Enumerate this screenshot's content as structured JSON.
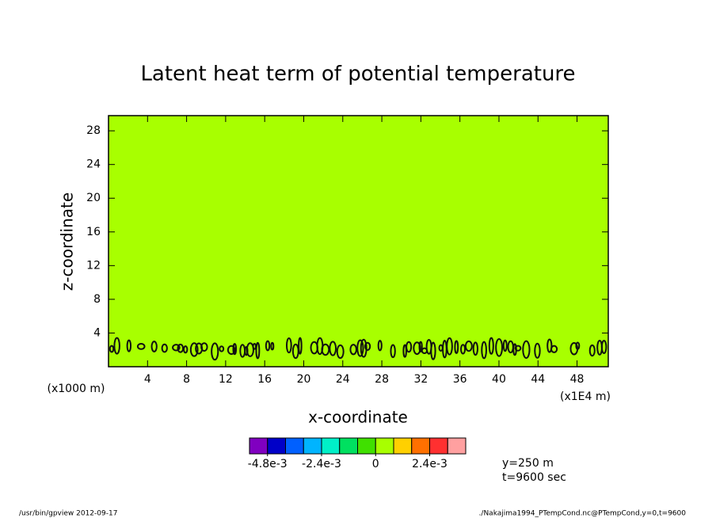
{
  "chart_data": {
    "type": "contour",
    "title": "Latent heat term of potential temperature",
    "xlabel": "x-coordinate",
    "ylabel": "z-coordinate",
    "x_unit": "(x1E4 m)",
    "y_unit": "(x1000 m)",
    "xlim": [
      0,
      51.2
    ],
    "xticks": [
      4,
      8,
      12,
      16,
      20,
      24,
      28,
      32,
      36,
      40,
      44,
      48
    ],
    "ylim": [
      0,
      29.8
    ],
    "yticks": [
      4,
      8,
      12,
      16,
      20,
      24,
      28
    ],
    "fill": "#a8ff00",
    "levels": [
      -0.0056,
      -0.0048,
      -0.004,
      -0.0032,
      -0.0024,
      -0.0016,
      -0.0008,
      0,
      0.0008,
      0.0016,
      0.0024,
      0.0032,
      0.004
    ],
    "colors": [
      "#8000c0",
      "#0000c8",
      "#0060ff",
      "#00b4ff",
      "#00f0c8",
      "#00e060",
      "#40e000",
      "#a8ff00",
      "#ffd000",
      "#ff7000",
      "#ff3030",
      "#ffa0a0"
    ],
    "colorbar_ticks": [
      {
        "value": -0.0048,
        "label": "-4.8e-3"
      },
      {
        "value": -0.0024,
        "label": "-2.4e-3"
      },
      0,
      {
        "value": 0.0024,
        "label": "2.4e-3"
      }
    ],
    "annotations": [
      "y=250 m",
      "t=9600 sec"
    ],
    "footer_left": "/usr/bin/gpview   2012-09-17",
    "footer_right": "./Nakajima1994_PTempCond.nc@PTempCond,y=0,t=9600"
  }
}
